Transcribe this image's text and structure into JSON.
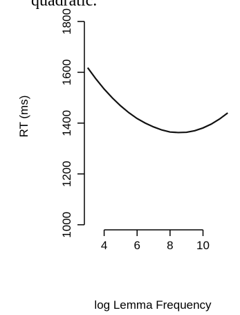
{
  "chart_data": {
    "type": "line",
    "title": "quadratic.",
    "xlabel": "log Lemma Frequency",
    "ylabel": "RT (ms)",
    "xlim": [
      2.8,
      11.7
    ],
    "ylim": [
      980,
      1830
    ],
    "x_ticks": [
      4,
      6,
      8,
      10
    ],
    "y_ticks": [
      1000,
      1200,
      1400,
      1600,
      1800
    ],
    "grid": false,
    "series": [
      {
        "x": [
          3.0,
          3.5,
          4.0,
          4.5,
          5.0,
          5.5,
          6.0,
          6.5,
          7.0,
          7.5,
          8.0,
          8.5,
          9.0,
          9.5,
          10.0,
          10.5,
          11.0,
          11.5
        ],
        "values": [
          1618,
          1574,
          1534,
          1499,
          1468,
          1441,
          1418,
          1400,
          1385,
          1373,
          1365,
          1363,
          1364,
          1370,
          1381,
          1396,
          1416,
          1440
        ]
      }
    ]
  }
}
